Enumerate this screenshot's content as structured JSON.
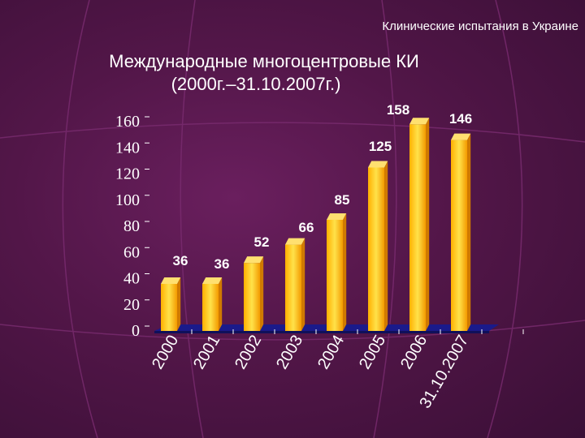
{
  "header": {
    "text": "Клинические испытания в Украине"
  },
  "chart_data": {
    "type": "bar",
    "title": "Международные многоцентровые КИ",
    "subtitle": "(2000г.–31.10.2007г.)",
    "categories": [
      "2000",
      "2001",
      "2002",
      "2003",
      "2004",
      "2005",
      "2006",
      "31.10.2007"
    ],
    "values": [
      36,
      36,
      52,
      66,
      85,
      125,
      158,
      146
    ],
    "data_labels": [
      "36",
      "36",
      "52",
      "66",
      "85",
      "125",
      "158",
      "146"
    ],
    "yticks": [
      "0",
      "20",
      "40",
      "60",
      "80",
      "100",
      "120",
      "140",
      "160"
    ],
    "ylim": [
      0,
      160
    ],
    "xlabel": "",
    "ylabel": "",
    "grid": false,
    "legend": "none",
    "colors": {
      "bar_front": "#f7b800",
      "bar_top": "#ffe070",
      "bar_side": "#d07a00",
      "floor": "#1a1a8a",
      "tick_text": "#ffffff",
      "label_text": "#ffffff"
    }
  }
}
